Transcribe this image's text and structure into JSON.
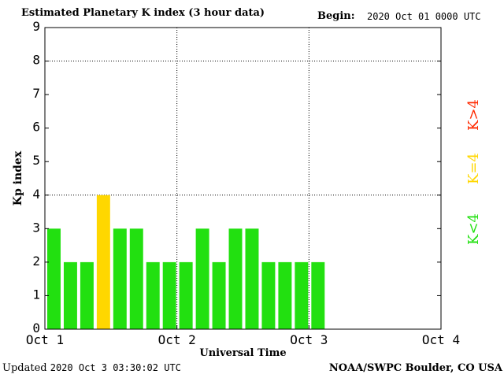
{
  "header": {
    "title": "Estimated Planetary K index (3 hour data)",
    "begin_label": "Begin:",
    "begin_value": "2020 Oct 01 0000 UTC"
  },
  "footer": {
    "updated_label": "Updated",
    "updated_value": "2020 Oct  3 03:30:02 UTC",
    "source": "NOAA/SWPC Boulder, CO USA"
  },
  "legend": {
    "items": [
      {
        "label": "K>4",
        "color": "#ff2a00"
      },
      {
        "label": "K=4",
        "color": "#ffd700"
      },
      {
        "label": "K<4",
        "color": "#22e010"
      }
    ]
  },
  "colors": {
    "below4": "#22e010",
    "equal4": "#ffd700",
    "above4": "#ff2a00"
  },
  "chart_data": {
    "type": "bar",
    "title": "Estimated Planetary K index (3 hour data)",
    "xlabel": "Universal Time",
    "ylabel": "Kp index",
    "ylim": [
      0,
      9
    ],
    "yticks": [
      0,
      1,
      2,
      3,
      4,
      5,
      6,
      7,
      8,
      9
    ],
    "xlim_days": [
      0,
      3
    ],
    "xtick_labels": [
      "Oct 1",
      "Oct 2",
      "Oct 3",
      "Oct 4"
    ],
    "interval_hours": 3,
    "categories": [
      "Oct 1 00",
      "Oct 1 03",
      "Oct 1 06",
      "Oct 1 09",
      "Oct 1 12",
      "Oct 1 15",
      "Oct 1 18",
      "Oct 1 21",
      "Oct 2 00",
      "Oct 2 03",
      "Oct 2 06",
      "Oct 2 09",
      "Oct 2 12",
      "Oct 2 15",
      "Oct 2 18",
      "Oct 2 21",
      "Oct 3 00"
    ],
    "values": [
      3,
      2,
      2,
      4,
      3,
      3,
      2,
      2,
      2,
      3,
      2,
      3,
      3,
      2,
      2,
      2,
      2
    ],
    "grid": "dotted"
  }
}
